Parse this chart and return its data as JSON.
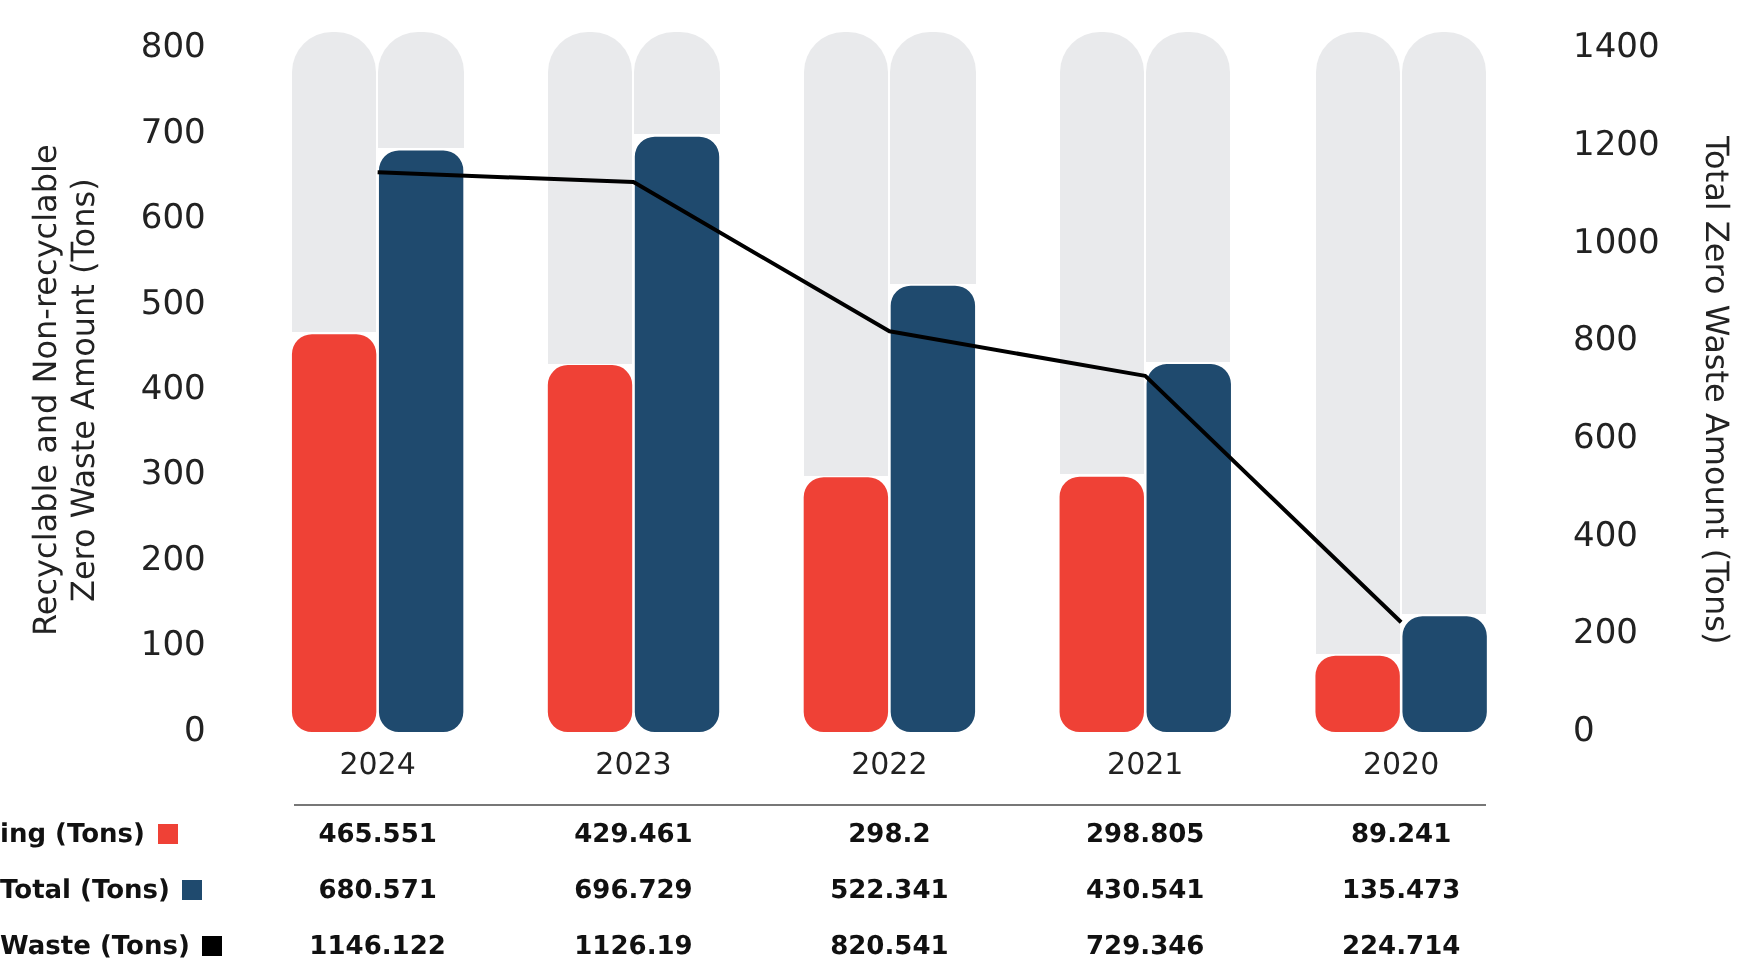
{
  "chart_data": {
    "type": "bar",
    "ylabel": "Recyclable and Non-recyclable Zero Waste Amount (Tons)",
    "y2label": "Total Zero Waste Amount (Tons)",
    "categories": [
      "2024",
      "2023",
      "2022",
      "2021",
      "2020"
    ],
    "series": [
      {
        "name": "ing (Tons)",
        "color": "#ef4136",
        "values": [
          465.551,
          429.461,
          298.2,
          298.805,
          89.241
        ]
      },
      {
        "name": "Total (Tons)",
        "color": "#1f4a6e",
        "values": [
          680.571,
          696.729,
          522.341,
          430.541,
          135.473
        ]
      },
      {
        "name": "Waste (Tons)",
        "type": "line",
        "axis": "y2",
        "color": "#000000",
        "values": [
          1146.122,
          1126.19,
          820.541,
          729.346,
          224.714
        ]
      }
    ],
    "ylim": [
      0,
      800
    ],
    "yticks": [
      0,
      100,
      200,
      300,
      400,
      500,
      600,
      700,
      800
    ],
    "y2lim": [
      0,
      1400
    ],
    "y2ticks": [
      0,
      200,
      400,
      600,
      800,
      1000,
      1200,
      1400
    ],
    "grid": false,
    "legend": "bottom left",
    "marker": "none",
    "data_labels": true
  }
}
